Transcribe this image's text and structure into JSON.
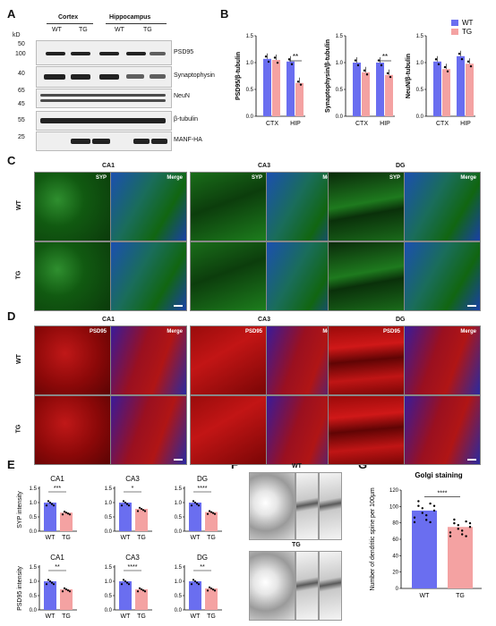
{
  "panels": {
    "A": "A",
    "B": "B",
    "C": "C",
    "D": "D",
    "E": "E",
    "F": "F",
    "G": "G"
  },
  "blot": {
    "kd": "kD",
    "group_cortex": "Cortex",
    "group_hippo": "Hippocampus",
    "genotypes": [
      "WT",
      "TG",
      "WT",
      "TG"
    ],
    "markers": [
      "50",
      "100",
      "40",
      "65",
      "45",
      "55",
      "25"
    ],
    "proteins": [
      "PSD95",
      "Synaptophysin",
      "NeuN",
      "β-tubulin",
      "MANF-HA"
    ]
  },
  "B": {
    "legend": [
      {
        "name": "WT",
        "color": "#6a6ef0"
      },
      {
        "name": "TG",
        "color": "#f4a2a2"
      }
    ],
    "charts": [
      {
        "ylabel": "PSD95/β-tubulin",
        "categories": [
          "CTX",
          "HIP"
        ],
        "wt": [
          1.07,
          1.02
        ],
        "tg": [
          1.05,
          0.62
        ],
        "sig": [
          "",
          "**"
        ],
        "ymax": 1.5,
        "ticks": [
          "0.0",
          "0.5",
          "1.0",
          "1.5"
        ]
      },
      {
        "ylabel": "Synaptophysin/β-tubulin",
        "categories": [
          "CTX",
          "HIP"
        ],
        "wt": [
          1.0,
          1.0
        ],
        "tg": [
          0.82,
          0.77
        ],
        "sig": [
          "",
          "**"
        ],
        "ymax": 1.5,
        "ticks": [
          "0.0",
          "0.5",
          "1.0",
          "1.5"
        ]
      },
      {
        "ylabel": "NeuN/β-tubulin",
        "categories": [
          "CTX",
          "HIP"
        ],
        "wt": [
          1.02,
          1.12
        ],
        "tg": [
          0.88,
          0.98
        ],
        "sig": [
          "",
          ""
        ],
        "ymax": 1.5,
        "ticks": [
          "0.0",
          "0.5",
          "1.0",
          "1.5"
        ]
      }
    ]
  },
  "C": {
    "regions": [
      "CA1",
      "CA3",
      "DG"
    ],
    "stain": "SYP",
    "merge": "Merge",
    "rows": [
      "WT",
      "TG"
    ]
  },
  "D": {
    "regions": [
      "CA1",
      "CA3",
      "DG"
    ],
    "stain": "PSD95",
    "merge": "Merge",
    "rows": [
      "WT",
      "TG"
    ]
  },
  "E": {
    "charts": [
      {
        "title": "CA1",
        "ylabel": "SYP intensity",
        "wt": 1.0,
        "tg": 0.65,
        "sig": "***",
        "ticks": [
          "0.0",
          "0.5",
          "1.0",
          "1.5"
        ]
      },
      {
        "title": "CA3",
        "ylabel": "",
        "wt": 1.0,
        "tg": 0.78,
        "sig": "*",
        "ticks": [
          "0.0",
          "0.5",
          "1.0",
          "1.5"
        ]
      },
      {
        "title": "DG",
        "ylabel": "",
        "wt": 1.0,
        "tg": 0.67,
        "sig": "****",
        "ticks": [
          "0.0",
          "0.5",
          "1.0",
          "1.5"
        ]
      },
      {
        "title": "CA1",
        "ylabel": "PSD95 intensity",
        "wt": 1.0,
        "tg": 0.72,
        "sig": "**",
        "ticks": [
          "0.0",
          "0.5",
          "1.0",
          "1.5"
        ]
      },
      {
        "title": "CA3",
        "ylabel": "",
        "wt": 1.0,
        "tg": 0.72,
        "sig": "****",
        "ticks": [
          "0.0",
          "0.5",
          "1.0",
          "1.5"
        ]
      },
      {
        "title": "DG",
        "ylabel": "",
        "wt": 1.0,
        "tg": 0.75,
        "sig": "**",
        "ticks": [
          "0.0",
          "0.5",
          "1.0",
          "1.5"
        ]
      }
    ],
    "categories": [
      "WT",
      "TG"
    ]
  },
  "F": {
    "wt": "WT",
    "tg": "TG"
  },
  "G": {
    "title": "Golgi staining",
    "ylabel": "Number of dendritic spine per 100μm",
    "categories": [
      "WT",
      "TG"
    ],
    "values": [
      95,
      75
    ],
    "sig": "****",
    "ticks": [
      "0",
      "20",
      "40",
      "60",
      "80",
      "100",
      "120"
    ]
  },
  "chart_data": [
    {
      "type": "bar",
      "title": "",
      "categories": [
        "CTX",
        "HIP"
      ],
      "series": [
        {
          "name": "WT",
          "values": [
            1.07,
            1.02
          ]
        },
        {
          "name": "TG",
          "values": [
            1.05,
            0.62
          ]
        }
      ],
      "ylabel": "PSD95/β-tubulin",
      "ylim": [
        0,
        1.5
      ]
    },
    {
      "type": "bar",
      "title": "",
      "categories": [
        "CTX",
        "HIP"
      ],
      "series": [
        {
          "name": "WT",
          "values": [
            1.0,
            1.0
          ]
        },
        {
          "name": "TG",
          "values": [
            0.82,
            0.77
          ]
        }
      ],
      "ylabel": "Synaptophysin/β-tubulin",
      "ylim": [
        0,
        1.5
      ]
    },
    {
      "type": "bar",
      "title": "",
      "categories": [
        "CTX",
        "HIP"
      ],
      "series": [
        {
          "name": "WT",
          "values": [
            1.02,
            1.12
          ]
        },
        {
          "name": "TG",
          "values": [
            0.88,
            0.98
          ]
        }
      ],
      "ylabel": "NeuN/β-tubulin",
      "ylim": [
        0,
        1.5
      ]
    },
    {
      "type": "bar",
      "title": "Golgi staining",
      "categories": [
        "WT",
        "TG"
      ],
      "values": [
        95,
        75
      ],
      "ylabel": "Number of dendritic spine per 100μm",
      "ylim": [
        0,
        120
      ]
    }
  ]
}
